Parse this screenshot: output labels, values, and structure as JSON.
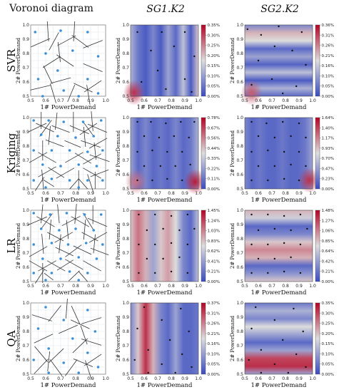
{
  "figure": {
    "column_titles": [
      "Voronoi diagram",
      "SG1.K2",
      "SG2.K2"
    ],
    "row_labels": [
      "SVR",
      "Kriging",
      "LR",
      "QA"
    ],
    "xlabel": "1# PowerDemand",
    "ylabel": "2# PowerDemand"
  },
  "axes": {
    "voronoi_ticks": [
      "0.5",
      "0.6",
      "0.7",
      "0.8",
      "0.9",
      "1.0"
    ],
    "heatmap_ticks": [
      "0.5",
      "0.6",
      "0.7",
      "0.8",
      "0.9",
      "1.0"
    ],
    "range": [
      0.5,
      1.0
    ]
  },
  "colormap": {
    "low": "#3b4cc0",
    "mid": "#dddddd",
    "high": "#b40426",
    "voronoi_point": "#3a8fd6",
    "voronoi_edge": "#333333"
  },
  "chart_data": [
    {
      "type": "scatter",
      "row": "SVR",
      "panel": "Voronoi diagram",
      "points": [
        [
          0.53,
          0.95
        ],
        [
          0.7,
          0.96
        ],
        [
          0.88,
          0.95
        ],
        [
          0.6,
          0.8
        ],
        [
          0.78,
          0.82
        ],
        [
          0.95,
          0.78
        ],
        [
          0.68,
          0.68
        ],
        [
          0.88,
          0.62
        ],
        [
          0.55,
          0.62
        ],
        [
          0.72,
          0.54
        ],
        [
          0.95,
          0.52
        ],
        [
          0.82,
          0.5
        ],
        [
          0.58,
          0.5
        ]
      ]
    },
    {
      "type": "heatmap",
      "row": "SVR",
      "panel": "SG1.K2",
      "colorbar_ticks": [
        "0.35%",
        "0.30%",
        "0.25%",
        "0.20%",
        "0.15%",
        "0.10%",
        "0.05%",
        "0.00%"
      ],
      "points": [
        [
          0.55,
          0.95
        ],
        [
          0.73,
          0.95
        ],
        [
          0.9,
          0.95
        ],
        [
          0.65,
          0.82
        ],
        [
          0.82,
          0.85
        ],
        [
          0.97,
          0.78
        ],
        [
          0.7,
          0.68
        ],
        [
          0.9,
          0.62
        ],
        [
          0.58,
          0.6
        ],
        [
          0.76,
          0.55
        ],
        [
          0.95,
          0.53
        ]
      ]
    },
    {
      "type": "heatmap",
      "row": "SVR",
      "panel": "SG2.K2",
      "colorbar_ticks": [
        "0.36%",
        "0.31%",
        "0.26%",
        "0.21%",
        "0.16%",
        "0.10%",
        "0.05%",
        "0.00%"
      ],
      "points": [
        [
          0.52,
          0.97
        ],
        [
          0.62,
          0.93
        ],
        [
          0.75,
          0.99
        ],
        [
          0.92,
          0.95
        ],
        [
          0.72,
          0.85
        ],
        [
          0.85,
          0.82
        ],
        [
          0.6,
          0.75
        ],
        [
          0.95,
          0.72
        ],
        [
          0.7,
          0.62
        ],
        [
          0.55,
          0.58
        ],
        [
          0.88,
          0.57
        ],
        [
          0.78,
          0.52
        ]
      ]
    },
    {
      "type": "scatter",
      "row": "Kriging",
      "panel": "Voronoi diagram",
      "points": [
        [
          0.52,
          0.98
        ],
        [
          0.62,
          0.98
        ],
        [
          0.72,
          0.97
        ],
        [
          0.85,
          0.97
        ],
        [
          0.97,
          0.98
        ],
        [
          0.57,
          0.88
        ],
        [
          0.68,
          0.87
        ],
        [
          0.8,
          0.86
        ],
        [
          0.92,
          0.87
        ],
        [
          0.52,
          0.77
        ],
        [
          0.64,
          0.77
        ],
        [
          0.76,
          0.77
        ],
        [
          0.88,
          0.76
        ],
        [
          0.98,
          0.77
        ],
        [
          0.58,
          0.67
        ],
        [
          0.7,
          0.66
        ],
        [
          0.82,
          0.67
        ],
        [
          0.94,
          0.66
        ],
        [
          0.52,
          0.56
        ],
        [
          0.64,
          0.57
        ],
        [
          0.76,
          0.56
        ],
        [
          0.88,
          0.56
        ],
        [
          0.98,
          0.56
        ],
        [
          0.6,
          0.51
        ],
        [
          0.82,
          0.51
        ]
      ]
    },
    {
      "type": "heatmap",
      "row": "Kriging",
      "panel": "SG1.K2",
      "colorbar_ticks": [
        "0.78%",
        "0.67%",
        "0.56%",
        "0.44%",
        "0.33%",
        "0.22%",
        "0.11%",
        "0.00%"
      ],
      "points": [
        [
          0.55,
          0.97
        ],
        [
          0.65,
          0.97
        ],
        [
          0.76,
          0.96
        ],
        [
          0.87,
          0.97
        ],
        [
          0.97,
          0.97
        ],
        [
          0.6,
          0.87
        ],
        [
          0.71,
          0.86
        ],
        [
          0.82,
          0.87
        ],
        [
          0.93,
          0.86
        ],
        [
          0.55,
          0.76
        ],
        [
          0.66,
          0.77
        ],
        [
          0.77,
          0.76
        ],
        [
          0.88,
          0.76
        ],
        [
          0.6,
          0.66
        ],
        [
          0.72,
          0.66
        ],
        [
          0.83,
          0.66
        ],
        [
          0.94,
          0.67
        ],
        [
          0.55,
          0.56
        ],
        [
          0.66,
          0.56
        ],
        [
          0.77,
          0.57
        ],
        [
          0.88,
          0.56
        ]
      ]
    },
    {
      "type": "heatmap",
      "row": "Kriging",
      "panel": "SG2.K2",
      "colorbar_ticks": [
        "1.64%",
        "1.40%",
        "1.17%",
        "0.93%",
        "0.70%",
        "0.47%",
        "0.23%",
        "0.00%"
      ],
      "points": [
        [
          0.55,
          0.97
        ],
        [
          0.66,
          0.96
        ],
        [
          0.78,
          0.97
        ],
        [
          0.9,
          0.96
        ],
        [
          0.6,
          0.87
        ],
        [
          0.72,
          0.86
        ],
        [
          0.84,
          0.87
        ],
        [
          0.95,
          0.86
        ],
        [
          0.55,
          0.76
        ],
        [
          0.67,
          0.77
        ],
        [
          0.79,
          0.76
        ],
        [
          0.9,
          0.76
        ],
        [
          0.6,
          0.66
        ],
        [
          0.72,
          0.66
        ],
        [
          0.84,
          0.67
        ],
        [
          0.95,
          0.66
        ],
        [
          0.55,
          0.56
        ],
        [
          0.67,
          0.56
        ],
        [
          0.79,
          0.57
        ],
        [
          0.9,
          0.56
        ]
      ]
    },
    {
      "type": "scatter",
      "row": "LR",
      "panel": "Voronoi diagram",
      "points": [
        [
          0.52,
          0.98
        ],
        [
          0.63,
          0.97
        ],
        [
          0.74,
          0.98
        ],
        [
          0.86,
          0.97
        ],
        [
          0.97,
          0.97
        ],
        [
          0.57,
          0.87
        ],
        [
          0.69,
          0.86
        ],
        [
          0.8,
          0.87
        ],
        [
          0.92,
          0.86
        ],
        [
          0.52,
          0.76
        ],
        [
          0.64,
          0.77
        ],
        [
          0.75,
          0.76
        ],
        [
          0.87,
          0.77
        ],
        [
          0.98,
          0.76
        ],
        [
          0.58,
          0.66
        ],
        [
          0.7,
          0.66
        ],
        [
          0.82,
          0.67
        ],
        [
          0.94,
          0.66
        ],
        [
          0.52,
          0.56
        ],
        [
          0.64,
          0.56
        ],
        [
          0.76,
          0.57
        ],
        [
          0.88,
          0.56
        ],
        [
          0.6,
          0.51
        ],
        [
          0.82,
          0.51
        ]
      ]
    },
    {
      "type": "heatmap",
      "row": "LR",
      "panel": "SG1.K2",
      "colorbar_ticks": [
        "1.45%",
        "1.24%",
        "1.03%",
        "0.83%",
        "0.62%",
        "0.41%",
        "0.21%",
        "0.00%"
      ],
      "points": [
        [
          0.56,
          0.97
        ],
        [
          0.68,
          0.97
        ],
        [
          0.8,
          0.96
        ],
        [
          0.92,
          0.97
        ],
        [
          0.62,
          0.86
        ],
        [
          0.74,
          0.87
        ],
        [
          0.86,
          0.86
        ],
        [
          0.97,
          0.87
        ],
        [
          0.56,
          0.76
        ],
        [
          0.68,
          0.76
        ],
        [
          0.8,
          0.77
        ],
        [
          0.92,
          0.76
        ],
        [
          0.62,
          0.66
        ],
        [
          0.74,
          0.66
        ],
        [
          0.86,
          0.67
        ],
        [
          0.56,
          0.56
        ],
        [
          0.68,
          0.56
        ],
        [
          0.8,
          0.57
        ],
        [
          0.92,
          0.56
        ]
      ]
    },
    {
      "type": "heatmap",
      "row": "LR",
      "panel": "SG2.K2",
      "colorbar_ticks": [
        "1.48%",
        "1.27%",
        "1.06%",
        "0.85%",
        "0.64%",
        "0.42%",
        "0.21%",
        "0.00%"
      ],
      "points": [
        [
          0.55,
          0.97
        ],
        [
          0.67,
          0.97
        ],
        [
          0.79,
          0.96
        ],
        [
          0.91,
          0.97
        ],
        [
          0.6,
          0.86
        ],
        [
          0.72,
          0.87
        ],
        [
          0.84,
          0.86
        ],
        [
          0.96,
          0.87
        ],
        [
          0.55,
          0.76
        ],
        [
          0.67,
          0.76
        ],
        [
          0.79,
          0.77
        ],
        [
          0.91,
          0.76
        ],
        [
          0.6,
          0.66
        ],
        [
          0.72,
          0.66
        ],
        [
          0.84,
          0.67
        ],
        [
          0.55,
          0.56
        ],
        [
          0.67,
          0.56
        ],
        [
          0.79,
          0.57
        ],
        [
          0.91,
          0.56
        ]
      ]
    },
    {
      "type": "scatter",
      "row": "QA",
      "panel": "Voronoi diagram",
      "points": [
        [
          0.6,
          0.97
        ],
        [
          0.88,
          0.95
        ],
        [
          0.72,
          0.88
        ],
        [
          0.55,
          0.82
        ],
        [
          0.93,
          0.8
        ],
        [
          0.78,
          0.75
        ],
        [
          0.62,
          0.68
        ],
        [
          0.88,
          0.65
        ],
        [
          0.52,
          0.6
        ],
        [
          0.72,
          0.58
        ],
        [
          0.95,
          0.55
        ],
        [
          0.62,
          0.51
        ],
        [
          0.82,
          0.51
        ]
      ]
    },
    {
      "type": "heatmap",
      "row": "QA",
      "panel": "SG1.K2",
      "colorbar_ticks": [
        "0.37%",
        "0.31%",
        "0.26%",
        "0.21%",
        "0.16%",
        "0.10%",
        "0.05%",
        "0.00%"
      ],
      "points": [
        [
          0.6,
          0.97
        ],
        [
          0.87,
          0.96
        ],
        [
          0.73,
          0.88
        ],
        [
          0.55,
          0.82
        ],
        [
          0.93,
          0.8
        ],
        [
          0.79,
          0.74
        ],
        [
          0.63,
          0.67
        ],
        [
          0.88,
          0.64
        ],
        [
          0.53,
          0.6
        ],
        [
          0.73,
          0.57
        ],
        [
          0.95,
          0.55
        ],
        [
          0.63,
          0.51
        ],
        [
          0.83,
          0.51
        ]
      ]
    },
    {
      "type": "heatmap",
      "row": "QA",
      "panel": "SG2.K2",
      "colorbar_ticks": [
        "0.35%",
        "0.30%",
        "0.25%",
        "0.20%",
        "0.15%",
        "0.10%",
        "0.05%",
        "0.00%"
      ],
      "points": [
        [
          0.58,
          0.97
        ],
        [
          0.86,
          0.96
        ],
        [
          0.72,
          0.88
        ],
        [
          0.55,
          0.82
        ],
        [
          0.93,
          0.8
        ],
        [
          0.78,
          0.74
        ],
        [
          0.62,
          0.67
        ],
        [
          0.88,
          0.64
        ],
        [
          0.53,
          0.6
        ],
        [
          0.72,
          0.57
        ],
        [
          0.95,
          0.55
        ],
        [
          0.62,
          0.51
        ],
        [
          0.82,
          0.51
        ]
      ]
    }
  ]
}
